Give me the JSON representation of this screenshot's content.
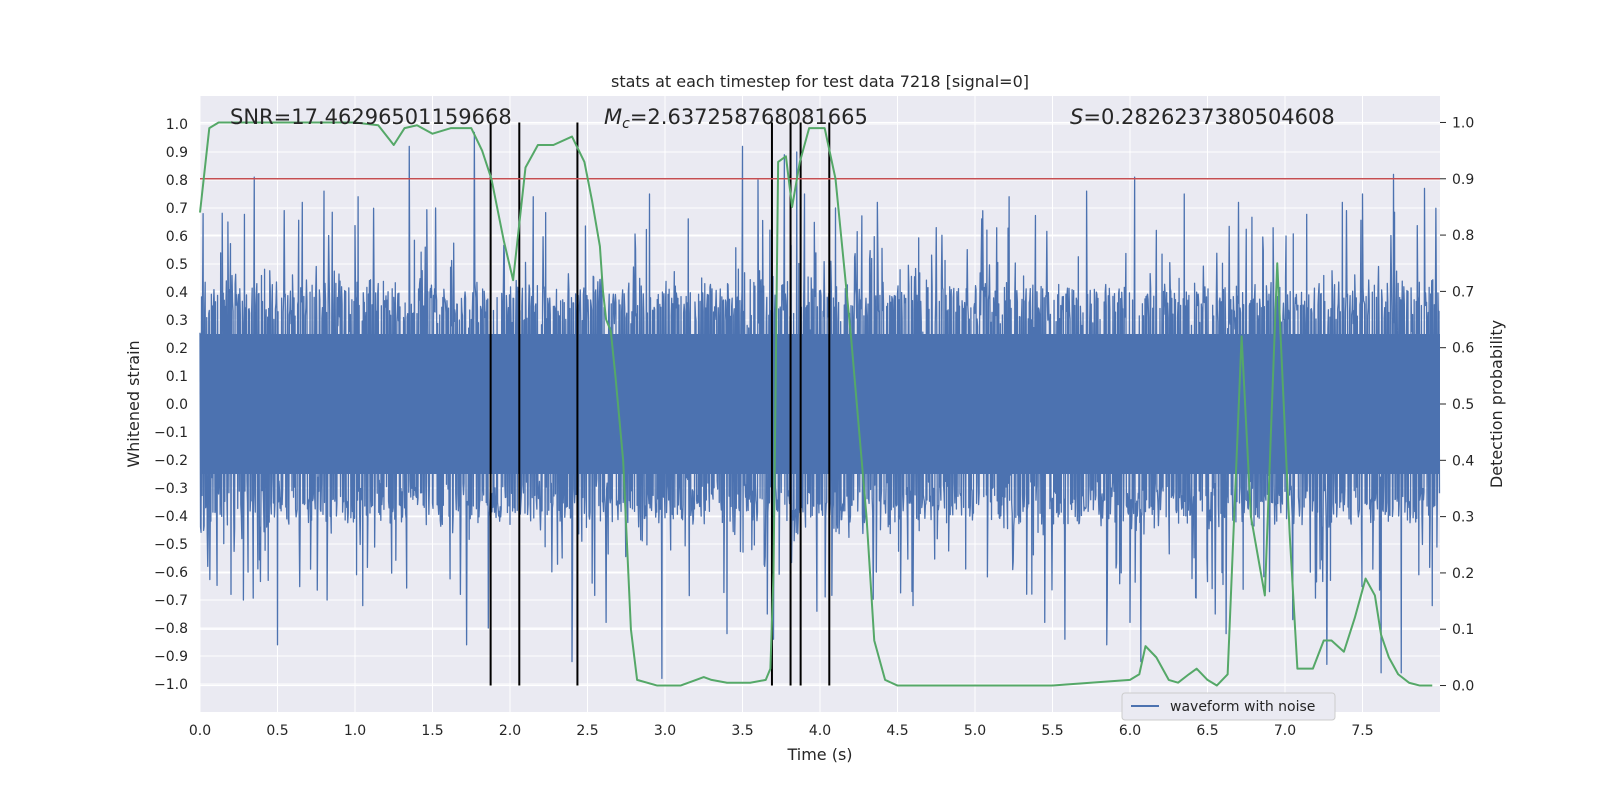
{
  "chart_data": {
    "type": "line",
    "title": "stats at each timestep for test data 7218 [signal=0]",
    "xlabel": "Time (s)",
    "ylabel": "Whitened strain",
    "y2label": "Detection probability",
    "xlim": [
      0.0,
      8.0
    ],
    "ylim": [
      -1.1,
      1.1
    ],
    "y2lim": [
      -0.047,
      1.047
    ],
    "x_ticks": [
      "0.0",
      "0.5",
      "1.0",
      "1.5",
      "2.0",
      "2.5",
      "3.0",
      "3.5",
      "4.0",
      "4.5",
      "5.0",
      "5.5",
      "6.0",
      "6.5",
      "7.0",
      "7.5"
    ],
    "y_ticks": [
      "1.0",
      "0.9",
      "0.8",
      "0.7",
      "0.6",
      "0.5",
      "0.4",
      "0.3",
      "0.2",
      "0.1",
      "0.0",
      "−0.1",
      "−0.2",
      "−0.3",
      "−0.4",
      "−0.5",
      "−0.6",
      "−0.7",
      "−0.8",
      "−0.9",
      "−1.0"
    ],
    "y2_ticks": [
      "1.0",
      "0.9",
      "0.8",
      "0.7",
      "0.6",
      "0.5",
      "0.4",
      "0.3",
      "0.2",
      "0.1",
      "0.0"
    ],
    "grid": true,
    "legend_position": "lower-right",
    "annotations": {
      "snr": "SNR=17.46296501159668",
      "mc_symbol": "M",
      "mc_sub": "c",
      "mc_value": "=2.637258768081665",
      "s_symbol": "S",
      "s_value": "=0.2826237380504608"
    },
    "threshold_level": 0.9,
    "detection_marker_times": [
      1.875,
      2.06,
      2.435,
      3.69,
      3.81,
      3.875,
      4.06
    ],
    "series": [
      {
        "name": "waveform with noise",
        "color": "#4c72b0",
        "noise_envelope": 0.3,
        "peaks": [
          [
            0.02,
            0.68
          ],
          [
            0.05,
            -0.58
          ],
          [
            0.18,
            0.65
          ],
          [
            0.2,
            -0.68
          ],
          [
            0.28,
            -0.7
          ],
          [
            0.35,
            0.81
          ],
          [
            0.5,
            -0.86
          ],
          [
            0.66,
            0.72
          ],
          [
            0.8,
            0.76
          ],
          [
            0.82,
            -0.7
          ],
          [
            1.02,
            0.74
          ],
          [
            1.05,
            -0.72
          ],
          [
            1.35,
            0.92
          ],
          [
            1.52,
            0.7
          ],
          [
            1.68,
            -0.68
          ],
          [
            1.72,
            -0.86
          ],
          [
            1.77,
            0.97
          ],
          [
            1.86,
            -0.8
          ],
          [
            2.15,
            0.74
          ],
          [
            2.4,
            -0.92
          ],
          [
            2.62,
            -0.78
          ],
          [
            2.9,
            0.75
          ],
          [
            2.98,
            -0.98
          ],
          [
            3.4,
            -0.82
          ],
          [
            3.5,
            0.92
          ],
          [
            3.6,
            0.8
          ],
          [
            3.66,
            -0.75
          ],
          [
            3.7,
            -0.84
          ],
          [
            3.77,
            0.89
          ],
          [
            3.85,
            0.9
          ],
          [
            3.9,
            0.75
          ],
          [
            3.98,
            -0.74
          ],
          [
            4.1,
            0.7
          ],
          [
            4.37,
            0.72
          ],
          [
            4.6,
            -0.72
          ],
          [
            5.05,
            0.69
          ],
          [
            5.22,
            0.74
          ],
          [
            5.45,
            -0.78
          ],
          [
            5.58,
            -0.84
          ],
          [
            5.72,
            0.76
          ],
          [
            5.85,
            -0.86
          ],
          [
            6.0,
            -0.78
          ],
          [
            6.03,
            0.81
          ],
          [
            6.07,
            -0.92
          ],
          [
            6.35,
            0.75
          ],
          [
            6.55,
            -0.75
          ],
          [
            6.62,
            -0.82
          ],
          [
            6.7,
            0.72
          ],
          [
            6.9,
            -0.67
          ],
          [
            7.05,
            -0.77
          ],
          [
            7.27,
            -0.93
          ],
          [
            7.37,
            0.72
          ],
          [
            7.5,
            0.75
          ],
          [
            7.62,
            -0.96
          ],
          [
            7.7,
            0.82
          ],
          [
            7.75,
            -0.96
          ],
          [
            7.9,
            0.77
          ],
          [
            7.95,
            -0.72
          ]
        ]
      },
      {
        "name": "detection probability",
        "color": "#55a868",
        "x": [
          0.0,
          0.06,
          0.12,
          0.25,
          0.5,
          0.75,
          1.0,
          1.15,
          1.25,
          1.32,
          1.4,
          1.5,
          1.62,
          1.75,
          1.82,
          1.88,
          1.96,
          2.02,
          2.1,
          2.18,
          2.28,
          2.4,
          2.48,
          2.53,
          2.58,
          2.6,
          2.62,
          2.65,
          2.68,
          2.73,
          2.78,
          2.82,
          2.95,
          3.1,
          3.2,
          3.25,
          3.3,
          3.4,
          3.55,
          3.65,
          3.68,
          3.7,
          3.73,
          3.78,
          3.82,
          3.87,
          3.93,
          4.03,
          4.1,
          4.2,
          4.3,
          4.35,
          4.42,
          4.5,
          5.0,
          5.5,
          6.0,
          6.06,
          6.1,
          6.17,
          6.25,
          6.31,
          6.38,
          6.43,
          6.5,
          6.56,
          6.63,
          6.72,
          6.78,
          6.87,
          6.95,
          7.03,
          7.08,
          7.12,
          7.18,
          7.25,
          7.3,
          7.38,
          7.45,
          7.52,
          7.58,
          7.62,
          7.67,
          7.73,
          7.8,
          7.87,
          7.95
        ],
        "y": [
          0.84,
          0.99,
          1.0,
          1.0,
          1.0,
          1.0,
          1.0,
          0.995,
          0.96,
          0.99,
          0.995,
          0.98,
          0.99,
          0.99,
          0.95,
          0.9,
          0.79,
          0.72,
          0.92,
          0.96,
          0.96,
          0.975,
          0.93,
          0.86,
          0.78,
          0.7,
          0.65,
          0.63,
          0.55,
          0.4,
          0.1,
          0.01,
          0.0,
          0.0,
          0.01,
          0.015,
          0.01,
          0.005,
          0.005,
          0.01,
          0.03,
          0.2,
          0.93,
          0.94,
          0.85,
          0.93,
          0.99,
          0.99,
          0.9,
          0.62,
          0.3,
          0.08,
          0.01,
          0.0,
          0.0,
          0.0,
          0.01,
          0.02,
          0.07,
          0.05,
          0.01,
          0.005,
          0.02,
          0.03,
          0.01,
          0.0,
          0.02,
          0.62,
          0.3,
          0.16,
          0.75,
          0.27,
          0.03,
          0.03,
          0.03,
          0.08,
          0.08,
          0.06,
          0.12,
          0.19,
          0.16,
          0.09,
          0.05,
          0.02,
          0.005,
          0.0,
          0.0
        ]
      },
      {
        "name": "threshold",
        "color": "#c44e52",
        "y": [
          0.9,
          0.9
        ]
      }
    ]
  }
}
